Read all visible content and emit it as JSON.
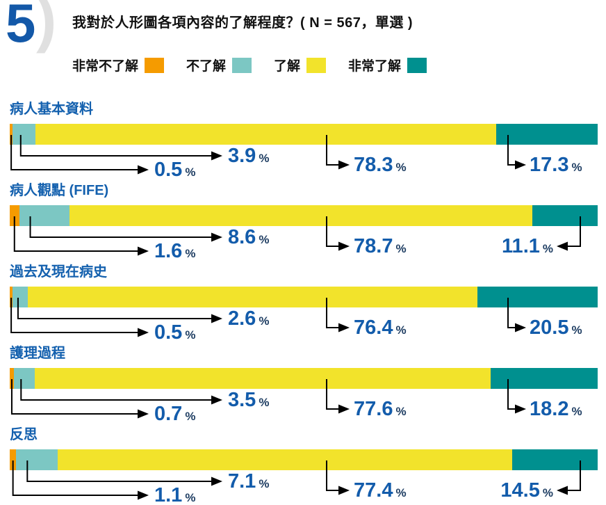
{
  "header": {
    "number": "5",
    "paren": ")",
    "title": "我對於人形圖各項內容的了解程度？( N = 567，單選 )"
  },
  "chart_data": {
    "type": "bar",
    "subtype": "stacked-horizontal",
    "title": "我對於人形圖各項內容的了解程度？",
    "sample_note": "N = 567，單選",
    "n": 567,
    "unit": "%",
    "xlim": [
      0,
      100
    ],
    "legend_position": "top",
    "value_labels": "callout-arrows",
    "categories": [
      "病人基本資料",
      "病人觀點 (FIFE)",
      "過去及現在病史",
      "護理過程",
      "反思"
    ],
    "series": [
      {
        "name": "非常不了解",
        "color": "#F59B00",
        "values": [
          0.5,
          1.6,
          0.5,
          0.7,
          1.1
        ]
      },
      {
        "name": "不了解",
        "color": "#7CC7C3",
        "values": [
          3.9,
          8.6,
          2.6,
          3.5,
          7.1
        ]
      },
      {
        "name": "了解",
        "color": "#F2E32B",
        "values": [
          78.3,
          78.7,
          76.4,
          77.6,
          77.4
        ]
      },
      {
        "name": "非常了解",
        "color": "#00908F",
        "values": [
          17.3,
          11.1,
          20.5,
          18.2,
          14.5
        ]
      }
    ]
  },
  "colors": {
    "value_blue": "#135CAB",
    "percent_sign_navy": "#1F3E63",
    "category_blue": "#1360AE",
    "question_number_blue": "#1358A8",
    "paren_gray": "#E0E0E0",
    "arrow_black": "#000000",
    "title_black": "#111111"
  }
}
